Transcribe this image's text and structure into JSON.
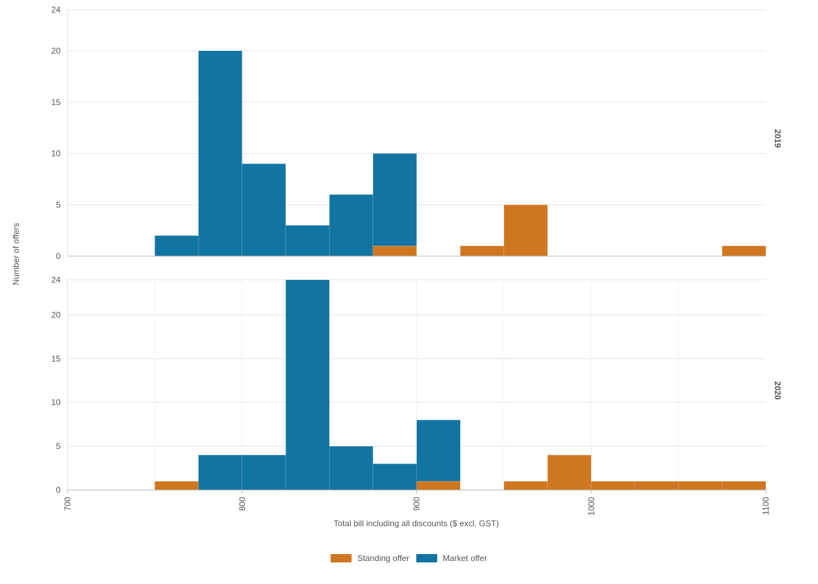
{
  "chart_data": {
    "type": "bar",
    "xlabel": "Total bill including all discounts ($ excl. GST)",
    "ylabel": "Number of offers",
    "xlim": [
      700,
      1100
    ],
    "x_ticks": [
      "700",
      "800",
      "900",
      "1000",
      "1100"
    ],
    "bin_width": 25,
    "stacked": true,
    "legend_position": "bottom",
    "grid": true,
    "series_colors": {
      "Standing offer": "#cf7720",
      "Market offer": "#1274a2"
    },
    "facets": [
      {
        "label": "2019",
        "ylim": [
          0,
          24
        ],
        "y_ticks": [
          "0",
          "5",
          "10",
          "15",
          "20",
          "24"
        ],
        "bins": [
          750,
          775,
          800,
          825,
          850,
          875,
          900,
          925,
          950,
          975,
          1000,
          1025,
          1050,
          1075
        ],
        "series": [
          {
            "name": "Standing offer",
            "values": [
              0,
              0,
              0,
              0,
              0,
              1,
              0,
              1,
              5,
              0,
              0,
              0,
              0,
              1
            ]
          },
          {
            "name": "Market offer",
            "values": [
              2,
              20,
              9,
              3,
              6,
              9,
              0,
              0,
              0,
              0,
              0,
              0,
              0,
              0
            ]
          }
        ]
      },
      {
        "label": "2020",
        "ylim": [
          0,
          24
        ],
        "y_ticks": [
          "0",
          "5",
          "10",
          "15",
          "20",
          "24"
        ],
        "bins": [
          750,
          775,
          800,
          825,
          850,
          875,
          900,
          925,
          950,
          975,
          1000,
          1025,
          1050,
          1075
        ],
        "series": [
          {
            "name": "Standing offer",
            "values": [
              1,
              0,
              0,
              0,
              0,
              0,
              1,
              0,
              1,
              4,
              1,
              1,
              1,
              1
            ]
          },
          {
            "name": "Market offer",
            "values": [
              0,
              4,
              4,
              24,
              5,
              3,
              7,
              0,
              0,
              0,
              0,
              0,
              0,
              0
            ]
          }
        ]
      }
    ]
  },
  "legend": {
    "items": [
      {
        "label": "Standing offer",
        "color": "#cf7720"
      },
      {
        "label": "Market offer",
        "color": "#1274a2"
      }
    ]
  }
}
